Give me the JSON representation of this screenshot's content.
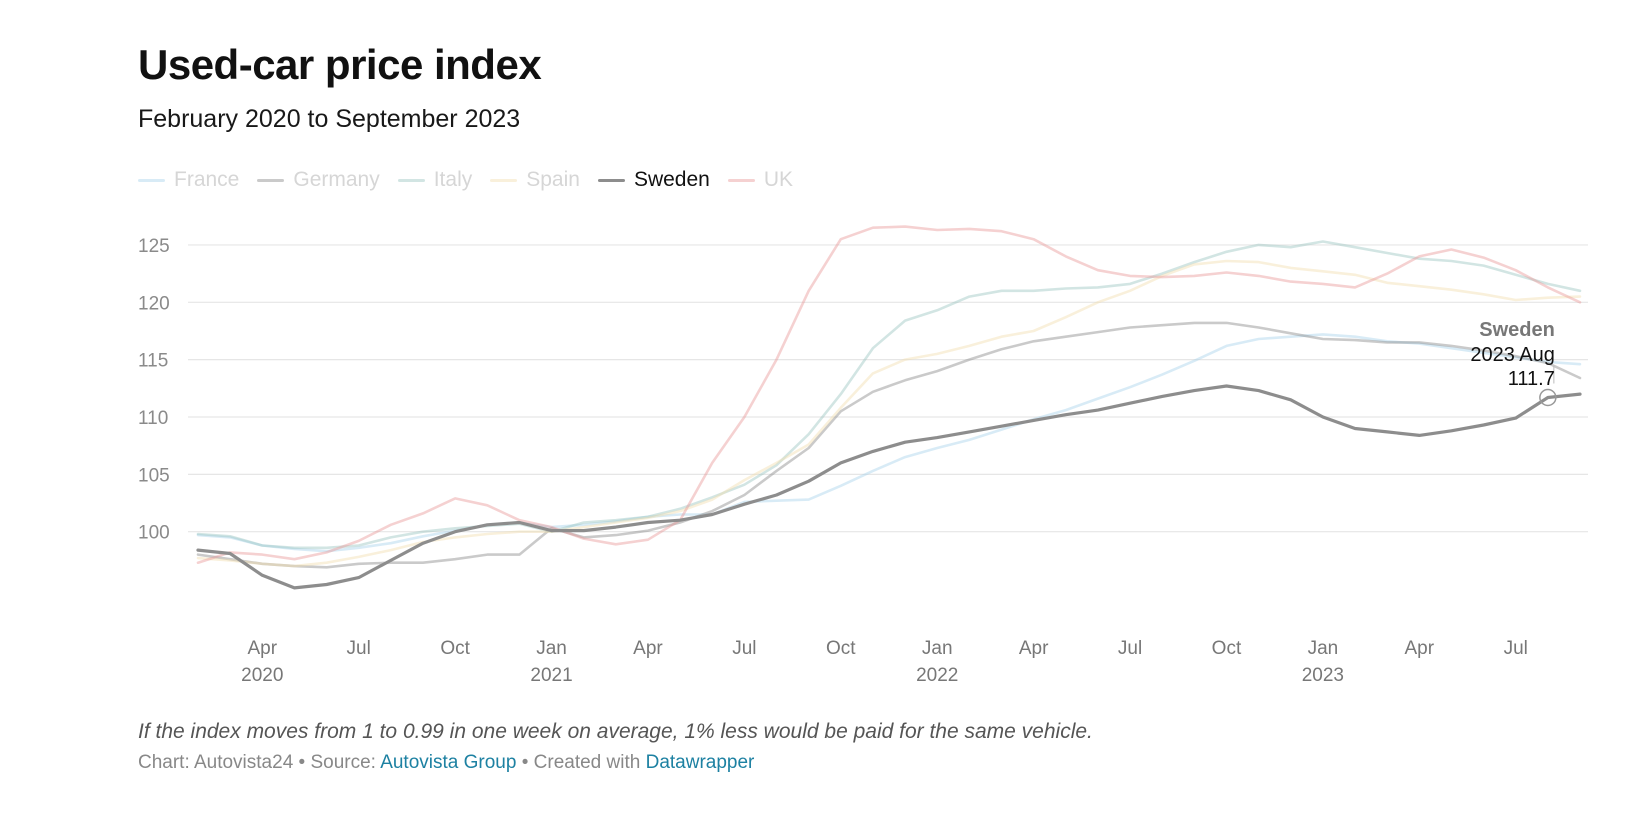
{
  "header": {
    "title": "Used-car price index",
    "subtitle": "February 2020 to September 2023"
  },
  "footer": {
    "notes": "If the index moves from 1 to 0.99 in one week on average, 1% less would be paid for the same vehicle.",
    "credit_prefix": "Chart: Autovista24 • Source: ",
    "source_link": "Autovista Group",
    "created_prefix": " • Created with ",
    "created_link": "Datawrapper"
  },
  "tooltip": {
    "series": "Sweden",
    "date": "2023 Aug",
    "value": "111.7"
  },
  "colors": {
    "France": "#a9d3ea",
    "Germany": "#8a8a8a",
    "Italy": "#9cc6c2",
    "Spain": "#f2ddb0",
    "Sweden": "#8d8d8d",
    "UK": "#e89a9a",
    "grid": "#e6e6e6",
    "axis_text": "#8a8a8a"
  },
  "chart_data": {
    "type": "line",
    "title": "Used-car price index",
    "subtitle": "February 2020 to September 2023",
    "x_unit": "month",
    "x_range": [
      "2020-02",
      "2023-09"
    ],
    "ylim": [
      93,
      127
    ],
    "y_ticks": [
      100,
      105,
      110,
      115,
      120,
      125
    ],
    "x_ticks": [
      {
        "x": "2020-04",
        "label": "Apr",
        "year": "2020"
      },
      {
        "x": "2020-07",
        "label": "Jul"
      },
      {
        "x": "2020-10",
        "label": "Oct"
      },
      {
        "x": "2021-01",
        "label": "Jan",
        "year": "2021"
      },
      {
        "x": "2021-04",
        "label": "Apr"
      },
      {
        "x": "2021-07",
        "label": "Jul"
      },
      {
        "x": "2021-10",
        "label": "Oct"
      },
      {
        "x": "2022-01",
        "label": "Jan",
        "year": "2022"
      },
      {
        "x": "2022-04",
        "label": "Apr"
      },
      {
        "x": "2022-07",
        "label": "Jul"
      },
      {
        "x": "2022-10",
        "label": "Oct"
      },
      {
        "x": "2023-01",
        "label": "Jan",
        "year": "2023"
      },
      {
        "x": "2023-04",
        "label": "Apr"
      },
      {
        "x": "2023-07",
        "label": "Jul"
      }
    ],
    "grid": true,
    "legend_position": "top-left",
    "highlighted_series": "Sweden",
    "series": [
      {
        "name": "France",
        "points": [
          [
            "2020-02",
            99.7
          ],
          [
            "2020-03",
            99.5
          ],
          [
            "2020-04",
            98.8
          ],
          [
            "2020-05",
            98.5
          ],
          [
            "2020-06",
            98.3
          ],
          [
            "2020-07",
            98.6
          ],
          [
            "2020-08",
            99.0
          ],
          [
            "2020-09",
            99.6
          ],
          [
            "2020-10",
            100.1
          ],
          [
            "2020-11",
            100.6
          ],
          [
            "2020-12",
            100.8
          ],
          [
            "2021-01",
            100.4
          ],
          [
            "2021-02",
            100.6
          ],
          [
            "2021-03",
            100.9
          ],
          [
            "2021-04",
            101.3
          ],
          [
            "2021-05",
            101.5
          ],
          [
            "2021-06",
            101.5
          ],
          [
            "2021-07",
            102.6
          ],
          [
            "2021-08",
            102.7
          ],
          [
            "2021-09",
            102.8
          ],
          [
            "2021-10",
            104.0
          ],
          [
            "2021-11",
            105.3
          ],
          [
            "2021-12",
            106.5
          ],
          [
            "2022-01",
            107.3
          ],
          [
            "2022-02",
            108.0
          ],
          [
            "2022-03",
            108.9
          ],
          [
            "2022-04",
            109.8
          ],
          [
            "2022-05",
            110.6
          ],
          [
            "2022-06",
            111.6
          ],
          [
            "2022-07",
            112.6
          ],
          [
            "2022-08",
            113.7
          ],
          [
            "2022-09",
            114.9
          ],
          [
            "2022-10",
            116.2
          ],
          [
            "2022-11",
            116.8
          ],
          [
            "2022-12",
            117.0
          ],
          [
            "2023-01",
            117.2
          ],
          [
            "2023-02",
            117.0
          ],
          [
            "2023-03",
            116.6
          ],
          [
            "2023-04",
            116.4
          ],
          [
            "2023-05",
            116.0
          ],
          [
            "2023-06",
            115.6
          ],
          [
            "2023-07",
            115.2
          ],
          [
            "2023-08",
            114.8
          ],
          [
            "2023-09",
            114.6
          ]
        ]
      },
      {
        "name": "Germany",
        "points": [
          [
            "2020-02",
            98.0
          ],
          [
            "2020-03",
            97.6
          ],
          [
            "2020-04",
            97.2
          ],
          [
            "2020-05",
            97.0
          ],
          [
            "2020-06",
            96.9
          ],
          [
            "2020-07",
            97.2
          ],
          [
            "2020-08",
            97.3
          ],
          [
            "2020-09",
            97.3
          ],
          [
            "2020-10",
            97.6
          ],
          [
            "2020-11",
            98.0
          ],
          [
            "2020-12",
            98.0
          ],
          [
            "2021-01",
            100.3
          ],
          [
            "2021-02",
            99.5
          ],
          [
            "2021-03",
            99.7
          ],
          [
            "2021-04",
            100.1
          ],
          [
            "2021-05",
            100.8
          ],
          [
            "2021-06",
            101.8
          ],
          [
            "2021-07",
            103.2
          ],
          [
            "2021-08",
            105.3
          ],
          [
            "2021-09",
            107.3
          ],
          [
            "2021-10",
            110.5
          ],
          [
            "2021-11",
            112.2
          ],
          [
            "2021-12",
            113.2
          ],
          [
            "2022-01",
            114.0
          ],
          [
            "2022-02",
            115.0
          ],
          [
            "2022-03",
            115.9
          ],
          [
            "2022-04",
            116.6
          ],
          [
            "2022-05",
            117.0
          ],
          [
            "2022-06",
            117.4
          ],
          [
            "2022-07",
            117.8
          ],
          [
            "2022-08",
            118.0
          ],
          [
            "2022-09",
            118.2
          ],
          [
            "2022-10",
            118.2
          ],
          [
            "2022-11",
            117.8
          ],
          [
            "2022-12",
            117.3
          ],
          [
            "2023-01",
            116.8
          ],
          [
            "2023-02",
            116.7
          ],
          [
            "2023-03",
            116.5
          ],
          [
            "2023-04",
            116.5
          ],
          [
            "2023-05",
            116.2
          ],
          [
            "2023-06",
            115.8
          ],
          [
            "2023-07",
            115.3
          ],
          [
            "2023-08",
            114.7
          ],
          [
            "2023-09",
            113.4
          ]
        ]
      },
      {
        "name": "Italy",
        "points": [
          [
            "2020-02",
            99.8
          ],
          [
            "2020-03",
            99.6
          ],
          [
            "2020-04",
            98.8
          ],
          [
            "2020-05",
            98.6
          ],
          [
            "2020-06",
            98.6
          ],
          [
            "2020-07",
            98.8
          ],
          [
            "2020-08",
            99.5
          ],
          [
            "2020-09",
            100.0
          ],
          [
            "2020-10",
            100.3
          ],
          [
            "2020-11",
            100.5
          ],
          [
            "2020-12",
            100.7
          ],
          [
            "2021-01",
            100.0
          ],
          [
            "2021-02",
            100.8
          ],
          [
            "2021-03",
            101.0
          ],
          [
            "2021-04",
            101.3
          ],
          [
            "2021-05",
            102.0
          ],
          [
            "2021-06",
            103.0
          ],
          [
            "2021-07",
            104.1
          ],
          [
            "2021-08",
            105.8
          ],
          [
            "2021-09",
            108.5
          ],
          [
            "2021-10",
            112.0
          ],
          [
            "2021-11",
            116.0
          ],
          [
            "2021-12",
            118.4
          ],
          [
            "2022-01",
            119.3
          ],
          [
            "2022-02",
            120.5
          ],
          [
            "2022-03",
            121.0
          ],
          [
            "2022-04",
            121.0
          ],
          [
            "2022-05",
            121.2
          ],
          [
            "2022-06",
            121.3
          ],
          [
            "2022-07",
            121.6
          ],
          [
            "2022-08",
            122.5
          ],
          [
            "2022-09",
            123.5
          ],
          [
            "2022-10",
            124.4
          ],
          [
            "2022-11",
            125.0
          ],
          [
            "2022-12",
            124.8
          ],
          [
            "2023-01",
            125.3
          ],
          [
            "2023-02",
            124.8
          ],
          [
            "2023-03",
            124.3
          ],
          [
            "2023-04",
            123.8
          ],
          [
            "2023-05",
            123.6
          ],
          [
            "2023-06",
            123.2
          ],
          [
            "2023-07",
            122.4
          ],
          [
            "2023-08",
            121.6
          ],
          [
            "2023-09",
            121.0
          ]
        ]
      },
      {
        "name": "Spain",
        "points": [
          [
            "2020-02",
            97.7
          ],
          [
            "2020-03",
            97.5
          ],
          [
            "2020-04",
            97.2
          ],
          [
            "2020-05",
            97.0
          ],
          [
            "2020-06",
            97.3
          ],
          [
            "2020-07",
            97.8
          ],
          [
            "2020-08",
            98.4
          ],
          [
            "2020-09",
            99.1
          ],
          [
            "2020-10",
            99.5
          ],
          [
            "2020-11",
            99.8
          ],
          [
            "2020-12",
            100.0
          ],
          [
            "2021-01",
            100.0
          ],
          [
            "2021-02",
            100.4
          ],
          [
            "2021-03",
            100.8
          ],
          [
            "2021-04",
            101.2
          ],
          [
            "2021-05",
            101.8
          ],
          [
            "2021-06",
            102.8
          ],
          [
            "2021-07",
            104.5
          ],
          [
            "2021-08",
            106.0
          ],
          [
            "2021-09",
            107.6
          ],
          [
            "2021-10",
            110.8
          ],
          [
            "2021-11",
            113.8
          ],
          [
            "2021-12",
            115.0
          ],
          [
            "2022-01",
            115.5
          ],
          [
            "2022-02",
            116.2
          ],
          [
            "2022-03",
            117.0
          ],
          [
            "2022-04",
            117.5
          ],
          [
            "2022-05",
            118.7
          ],
          [
            "2022-06",
            120.0
          ],
          [
            "2022-07",
            121.0
          ],
          [
            "2022-08",
            122.3
          ],
          [
            "2022-09",
            123.3
          ],
          [
            "2022-10",
            123.6
          ],
          [
            "2022-11",
            123.5
          ],
          [
            "2022-12",
            123.0
          ],
          [
            "2023-01",
            122.7
          ],
          [
            "2023-02",
            122.4
          ],
          [
            "2023-03",
            121.7
          ],
          [
            "2023-04",
            121.4
          ],
          [
            "2023-05",
            121.1
          ],
          [
            "2023-06",
            120.7
          ],
          [
            "2023-07",
            120.2
          ],
          [
            "2023-08",
            120.4
          ],
          [
            "2023-09",
            120.5
          ]
        ]
      },
      {
        "name": "Sweden",
        "points": [
          [
            "2020-02",
            98.4
          ],
          [
            "2020-03",
            98.1
          ],
          [
            "2020-04",
            96.2
          ],
          [
            "2020-05",
            95.1
          ],
          [
            "2020-06",
            95.4
          ],
          [
            "2020-07",
            96.0
          ],
          [
            "2020-08",
            97.5
          ],
          [
            "2020-09",
            99.0
          ],
          [
            "2020-10",
            100.0
          ],
          [
            "2020-11",
            100.6
          ],
          [
            "2020-12",
            100.8
          ],
          [
            "2021-01",
            100.1
          ],
          [
            "2021-02",
            100.1
          ],
          [
            "2021-03",
            100.4
          ],
          [
            "2021-04",
            100.8
          ],
          [
            "2021-05",
            101.0
          ],
          [
            "2021-06",
            101.5
          ],
          [
            "2021-07",
            102.4
          ],
          [
            "2021-08",
            103.2
          ],
          [
            "2021-09",
            104.4
          ],
          [
            "2021-10",
            106.0
          ],
          [
            "2021-11",
            107.0
          ],
          [
            "2021-12",
            107.8
          ],
          [
            "2022-01",
            108.2
          ],
          [
            "2022-02",
            108.7
          ],
          [
            "2022-03",
            109.2
          ],
          [
            "2022-04",
            109.7
          ],
          [
            "2022-05",
            110.2
          ],
          [
            "2022-06",
            110.6
          ],
          [
            "2022-07",
            111.2
          ],
          [
            "2022-08",
            111.8
          ],
          [
            "2022-09",
            112.3
          ],
          [
            "2022-10",
            112.7
          ],
          [
            "2022-11",
            112.3
          ],
          [
            "2022-12",
            111.5
          ],
          [
            "2023-01",
            110.0
          ],
          [
            "2023-02",
            109.0
          ],
          [
            "2023-03",
            108.7
          ],
          [
            "2023-04",
            108.4
          ],
          [
            "2023-05",
            108.8
          ],
          [
            "2023-06",
            109.3
          ],
          [
            "2023-07",
            109.9
          ],
          [
            "2023-08",
            111.7
          ],
          [
            "2023-09",
            112.0
          ]
        ]
      },
      {
        "name": "UK",
        "points": [
          [
            "2020-02",
            97.3
          ],
          [
            "2020-03",
            98.2
          ],
          [
            "2020-04",
            98.0
          ],
          [
            "2020-05",
            97.6
          ],
          [
            "2020-06",
            98.2
          ],
          [
            "2020-07",
            99.2
          ],
          [
            "2020-08",
            100.6
          ],
          [
            "2020-09",
            101.6
          ],
          [
            "2020-10",
            102.9
          ],
          [
            "2020-11",
            102.3
          ],
          [
            "2020-12",
            101.0
          ],
          [
            "2021-01",
            100.4
          ],
          [
            "2021-02",
            99.4
          ],
          [
            "2021-03",
            98.9
          ],
          [
            "2021-04",
            99.3
          ],
          [
            "2021-05",
            101.0
          ],
          [
            "2021-06",
            106.0
          ],
          [
            "2021-07",
            110.0
          ],
          [
            "2021-08",
            115.0
          ],
          [
            "2021-09",
            121.0
          ],
          [
            "2021-10",
            125.5
          ],
          [
            "2021-11",
            126.5
          ],
          [
            "2021-12",
            126.6
          ],
          [
            "2022-01",
            126.3
          ],
          [
            "2022-02",
            126.4
          ],
          [
            "2022-03",
            126.2
          ],
          [
            "2022-04",
            125.5
          ],
          [
            "2022-05",
            124.0
          ],
          [
            "2022-06",
            122.8
          ],
          [
            "2022-07",
            122.3
          ],
          [
            "2022-08",
            122.2
          ],
          [
            "2022-09",
            122.3
          ],
          [
            "2022-10",
            122.6
          ],
          [
            "2022-11",
            122.3
          ],
          [
            "2022-12",
            121.8
          ],
          [
            "2023-01",
            121.6
          ],
          [
            "2023-02",
            121.3
          ],
          [
            "2023-03",
            122.5
          ],
          [
            "2023-04",
            124.0
          ],
          [
            "2023-05",
            124.6
          ],
          [
            "2023-06",
            123.9
          ],
          [
            "2023-07",
            122.8
          ],
          [
            "2023-08",
            121.3
          ],
          [
            "2023-09",
            120.0
          ]
        ]
      }
    ]
  }
}
